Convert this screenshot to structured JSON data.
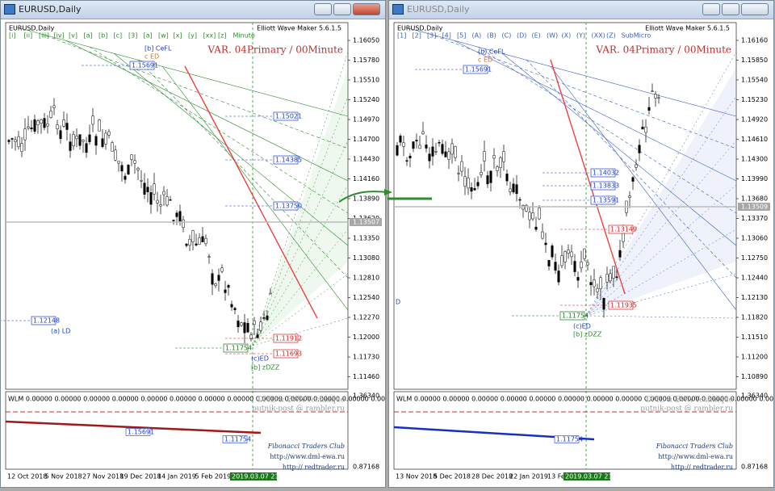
{
  "windows": [
    {
      "title": "EURUSD,Daily",
      "symbol": "EURUSD,Daily",
      "indicator": "Elliott Wave Maker 5.6.1.5",
      "variant": "VAR. 04Primary / 00Minute",
      "wave_labels": [
        "[i]",
        "[ii]",
        "[iii]",
        "[iv]",
        "[v]",
        "[a]",
        "[b]",
        "[c]",
        "[3]",
        "[a]",
        "[w]",
        "[x]",
        "[y]",
        "[xx]",
        "[z]",
        "Minute"
      ],
      "price_labels": [
        "1.16050",
        "1.15780",
        "1.15510",
        "1.15240",
        "1.14970",
        "1.14700",
        "1.14430",
        "1.14160",
        "1.13890",
        "1.13620",
        "1.13350",
        "1.13080",
        "1.12810",
        "1.12540",
        "1.12270",
        "1.12000",
        "1.11730",
        "1.11460"
      ],
      "level_tags": [
        {
          "text": "1.15021",
          "color": "#1f3fcf"
        },
        {
          "text": "1.14385",
          "color": "#1f3fcf"
        },
        {
          "text": "1.13750",
          "color": "#1f3fcf"
        },
        {
          "text": "1.12148",
          "color": "#1f3fcf"
        },
        {
          "text": "1.11754",
          "color": "#1a7a1a"
        },
        {
          "text": "1.11912",
          "color": "#d02020"
        },
        {
          "text": "1.11693",
          "color": "#d02020"
        },
        {
          "text": "1.15691",
          "color": "#1f3fcf"
        }
      ],
      "current_price": "1.13507",
      "wave_notes": [
        "(a) LD",
        "[b] CeFL",
        "c ED",
        "(c)ED",
        "[b] zDZZ"
      ],
      "sub": {
        "header": "WLM 0.00000 0.00000 0.00000 0.00000 0.00000 0.00000 0.00000 0.00000 0.00000 0.00000 0.00000 0.00000 0.00000",
        "price_labels": [
          "1.36340",
          "0.87168"
        ],
        "tags": [
          "1.15691",
          "1.11754"
        ],
        "credits": [
          "DML & EWA Technique",
          "putnik-post @ rambler.ru",
          "Fibonacci Traders Club",
          "http://www.dml-ewa.ru",
          "http:// redtrader.ru"
        ]
      },
      "date_labels": [
        "12 Oct 2018",
        "5 Nov 2018",
        "27 Nov 2018",
        "19 Dec 2018",
        "14 Jan 2019",
        "5 Feb 2019"
      ],
      "cursor_date": "2019.03.07 21:50"
    },
    {
      "title": "EURUSD,Daily",
      "symbol": "EURUSD,Daily",
      "indicator": "Elliott Wave Maker 5.6.1.5",
      "variant": "VAR. 04Primary / 00Minute",
      "wave_labels": [
        "[1]",
        "[2]",
        "[3]",
        "[4]",
        "[5]",
        "(A)",
        "(B)",
        "(C)",
        "(D)",
        "(E)",
        "(W)",
        "(X)",
        "(Y)",
        "(XX)",
        "(Z)",
        "SubMicro"
      ],
      "price_labels": [
        "1.16160",
        "1.15850",
        "1.15540",
        "1.15230",
        "1.14920",
        "1.14610",
        "1.14300",
        "1.13990",
        "1.13680",
        "1.13370",
        "1.13060",
        "1.12750",
        "1.12440",
        "1.12130",
        "1.11820",
        "1.11510",
        "1.11200",
        "1.10890"
      ],
      "level_tags": [
        {
          "text": "1.14032",
          "color": "#1f3fcf"
        },
        {
          "text": "1.13833",
          "color": "#1f3fcf"
        },
        {
          "text": "1.13591",
          "color": "#1f3fcf"
        },
        {
          "text": "1.13149",
          "color": "#d02020"
        },
        {
          "text": "1.11935",
          "color": "#d02020"
        },
        {
          "text": "1.11754",
          "color": "#1a7a1a"
        },
        {
          "text": "1.15691",
          "color": "#1f3fcf"
        }
      ],
      "current_price": "1.13509",
      "wave_notes": [
        "(b) CeFL",
        "c ED",
        "(c)ED",
        "[b] zDZZ",
        "D"
      ],
      "sub": {
        "header": "WLM 0.00000 0.00000 0.00000 0.00000 0.00000 0.00000 0.00000 0.00000 0.00000 0.00000 0.00000 0.00000 0.00000",
        "price_labels": [
          "1.36340",
          "0.87168"
        ],
        "tags": [
          "1.11754"
        ],
        "credits": [
          "DML & EWA Technique",
          "putnik-post @ rambler.ru",
          "Fibonacci Traders Club",
          "http://www.dml-ewa.ru",
          "http:// redtrader.ru"
        ]
      },
      "date_labels": [
        "13 Nov 2018",
        "5 Dec 2018",
        "28 Dec 2018",
        "22 Jan 2019",
        "13 Feb"
      ],
      "cursor_date": "2019.03.07 21:50"
    }
  ]
}
